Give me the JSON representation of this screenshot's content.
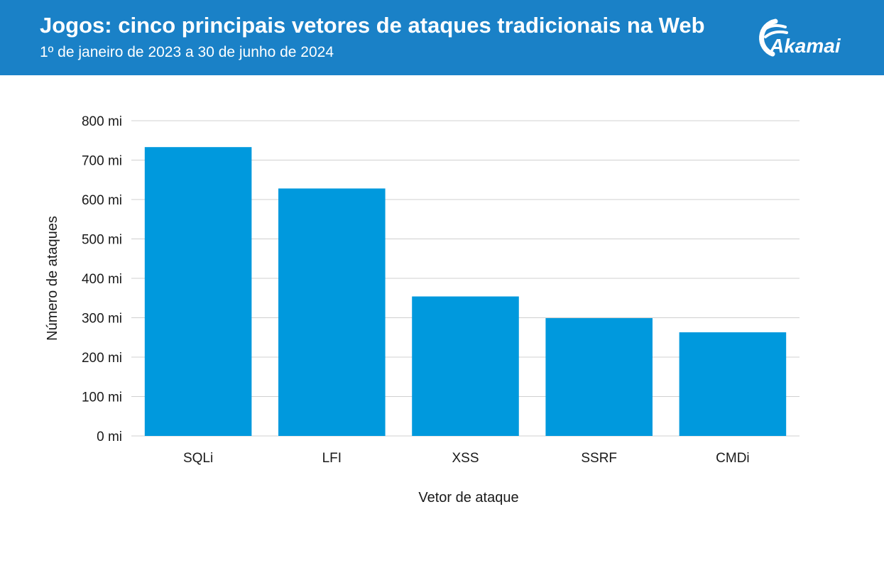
{
  "header": {
    "title": "Jogos: cinco principais vetores de ataques tradicionais na Web",
    "subtitle": "1º de janeiro de 2023 a 30 de junho de 2024",
    "logo_text": "Akamai",
    "background_color": "#1a81c7"
  },
  "chart_data": {
    "type": "bar",
    "categories": [
      "SQLi",
      "LFI",
      "XSS",
      "SSRF",
      "CMDi"
    ],
    "values": [
      733,
      628,
      354,
      299,
      263
    ],
    "unit": "mi",
    "xlabel": "Vetor de ataque",
    "ylabel": "Número de ataques",
    "ylim": [
      0,
      800
    ],
    "yticks": [
      0,
      100,
      200,
      300,
      400,
      500,
      600,
      700,
      800
    ],
    "ytick_labels": [
      "0 mi",
      "100 mi",
      "200 mi",
      "300 mi",
      "400 mi",
      "500 mi",
      "600 mi",
      "700 mi",
      "800 mi"
    ],
    "grid": true,
    "bar_color": "#0099dd",
    "grid_color": "#d0d0d0"
  }
}
